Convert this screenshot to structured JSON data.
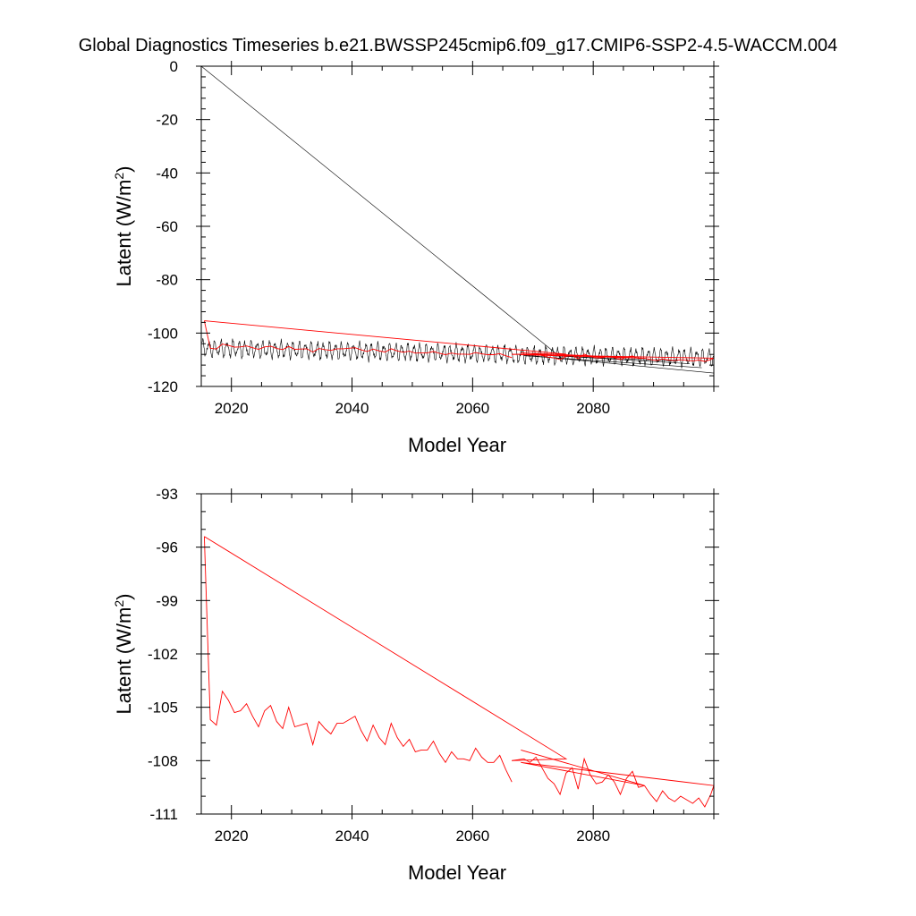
{
  "title": "Global Diagnostics Timeseries b.e21.BWSSP245cmip6.f09_g17.CMIP6-SSP2-4.5-WACCM.004",
  "colors": {
    "monthly": "#000000",
    "annual": "#ff0000",
    "axis": "#000000"
  },
  "chart_data": [
    {
      "type": "line",
      "title": "",
      "xlabel": "Model Year",
      "ylabel": "Latent (W/m2)",
      "ylabel_base": "Latent (W/m",
      "ylabel_sup": "2",
      "ylabel_end": ")",
      "xlim": [
        2015,
        2100
      ],
      "ylim": [
        -120,
        0
      ],
      "xticks": [
        2020,
        2040,
        2060,
        2080
      ],
      "yticks": [
        0,
        -20,
        -40,
        -60,
        -80,
        -100,
        -120
      ],
      "grid": false,
      "series": [
        {
          "style": "monthly",
          "color": "#000000",
          "x": [
            2015.0,
            2075.0
          ],
          "y": [
            0,
            -109.8
          ],
          "note_shape": "monthly trace continues below"
        },
        {
          "style": "monthly-segments",
          "color": "#000000",
          "segments": [
            {
              "x0": 2015.1,
              "x1": 2066.9,
              "mean": -106.8,
              "amp": 2.6,
              "trend": -2.2
            },
            {
              "x0": 2067.0,
              "x1": 2099.9,
              "mean": -108.7,
              "amp": 2.6,
              "trend": -1.0
            }
          ],
          "tails": [
            {
              "x": [
                2067.5,
                2100.0
              ],
              "y": [
                -108.0,
                -115.0
              ]
            },
            {
              "x": [
                2068.5,
                2098.0
              ],
              "y": [
                -108.5,
                -113.0
              ]
            },
            {
              "x": [
                2070.0,
                2096.0
              ],
              "y": [
                -108.0,
                -111.5
              ]
            },
            {
              "x": [
                2073.0,
                2094.0
              ],
              "y": [
                -108.5,
                -110.5
              ]
            }
          ]
        },
        {
          "style": "annual",
          "color": "#ff0000",
          "x": [
            2015.5,
            2016.5,
            2017.5,
            2018.5,
            2019.5,
            2020.5,
            2021.5,
            2022.5,
            2023.5,
            2024.5,
            2025.5,
            2026.5,
            2027.5,
            2028.5,
            2029.5,
            2030.5,
            2031.5,
            2032.5,
            2033.5,
            2034.5,
            2035.5,
            2036.5,
            2037.5,
            2038.5,
            2039.5,
            2040.5,
            2041.5,
            2042.5,
            2043.5,
            2044.5,
            2045.5,
            2046.5,
            2047.5,
            2048.5,
            2049.5,
            2050.5,
            2051.5,
            2052.5,
            2053.5,
            2054.5,
            2055.5,
            2056.5,
            2057.5,
            2058.5,
            2059.5,
            2060.5,
            2061.5,
            2062.5,
            2063.5,
            2064.5,
            2065.5,
            2066.5
          ],
          "y": [
            -95.4,
            -105.7,
            -106.0,
            -104.1,
            -104.6,
            -105.3,
            -105.2,
            -104.8,
            -105.5,
            -106.1,
            -105.2,
            -104.9,
            -105.8,
            -106.2,
            -105.0,
            -106.1,
            -106.0,
            -105.9,
            -107.1,
            -105.8,
            -106.2,
            -106.5,
            -105.9,
            -105.9,
            -105.7,
            -105.5,
            -106.3,
            -106.9,
            -106.0,
            -106.7,
            -107.1,
            -105.9,
            -106.7,
            -107.2,
            -106.8,
            -107.5,
            -107.4,
            -107.4,
            -106.9,
            -107.6,
            -108.1,
            -107.5,
            -107.9,
            -107.9,
            -108.0,
            -107.3,
            -107.8,
            -108.1,
            -108.1,
            -107.7,
            -108.5,
            -109.2
          ]
        },
        {
          "style": "annual",
          "color": "#ff0000",
          "x": [
            2015.5,
            2075.5,
            2066.5
          ],
          "y": [
            -95.4,
            -107.9,
            -108.0
          ]
        },
        {
          "style": "annual",
          "color": "#ff0000",
          "x": [
            2066.5,
            2068.5,
            2069.5,
            2070.5,
            2071.5,
            2072.5,
            2073.5,
            2074.5,
            2075.5,
            2076.5,
            2077.5,
            2078.5,
            2079.5,
            2080.5,
            2081.5,
            2082.5,
            2083.5,
            2084.5,
            2085.5,
            2086.5,
            2087.5,
            2088.5
          ],
          "y": [
            -108.0,
            -107.9,
            -108.1,
            -107.8,
            -108.4,
            -109.0,
            -109.3,
            -109.9,
            -108.7,
            -108.4,
            -109.6,
            -107.9,
            -108.8,
            -109.3,
            -109.2,
            -108.8,
            -109.2,
            -109.9,
            -109.0,
            -108.6,
            -109.5,
            -109.4
          ]
        },
        {
          "style": "annual",
          "color": "#ff0000",
          "x": [
            2068.0,
            2088.5,
            2068.0,
            2100.0,
            2099.5,
            2098.5,
            2097.5,
            2096.5,
            2095.5,
            2094.5,
            2093.5,
            2092.5,
            2091.5,
            2090.5,
            2089.5,
            2088.5
          ],
          "y": [
            -107.4,
            -109.4,
            -108.1,
            -109.4,
            -109.9,
            -110.6,
            -110.1,
            -110.4,
            -110.2,
            -110.0,
            -110.3,
            -110.1,
            -109.7,
            -110.3,
            -109.9,
            -109.4
          ]
        }
      ]
    },
    {
      "type": "line",
      "title": "",
      "xlabel": "Model Year",
      "ylabel": "Latent (W/m2)",
      "ylabel_base": "Latent (W/m",
      "ylabel_sup": "2",
      "ylabel_end": ")",
      "xlim": [
        2015,
        2100
      ],
      "ylim": [
        -111,
        -93
      ],
      "xticks": [
        2020,
        2040,
        2060,
        2080
      ],
      "yticks": [
        -93,
        -96,
        -99,
        -102,
        -105,
        -108,
        -111
      ],
      "grid": false,
      "series": [
        {
          "style": "annual",
          "color": "#ff0000",
          "x": [
            2015.5,
            2016.5,
            2017.5,
            2018.5,
            2019.5,
            2020.5,
            2021.5,
            2022.5,
            2023.5,
            2024.5,
            2025.5,
            2026.5,
            2027.5,
            2028.5,
            2029.5,
            2030.5,
            2031.5,
            2032.5,
            2033.5,
            2034.5,
            2035.5,
            2036.5,
            2037.5,
            2038.5,
            2039.5,
            2040.5,
            2041.5,
            2042.5,
            2043.5,
            2044.5,
            2045.5,
            2046.5,
            2047.5,
            2048.5,
            2049.5,
            2050.5,
            2051.5,
            2052.5,
            2053.5,
            2054.5,
            2055.5,
            2056.5,
            2057.5,
            2058.5,
            2059.5,
            2060.5,
            2061.5,
            2062.5,
            2063.5,
            2064.5,
            2065.5,
            2066.5
          ],
          "y": [
            -95.4,
            -105.7,
            -106.0,
            -104.1,
            -104.6,
            -105.3,
            -105.2,
            -104.8,
            -105.5,
            -106.1,
            -105.2,
            -104.9,
            -105.8,
            -106.2,
            -105.0,
            -106.1,
            -106.0,
            -105.9,
            -107.1,
            -105.8,
            -106.2,
            -106.5,
            -105.9,
            -105.9,
            -105.7,
            -105.5,
            -106.3,
            -106.9,
            -106.0,
            -106.7,
            -107.1,
            -105.9,
            -106.7,
            -107.2,
            -106.8,
            -107.5,
            -107.4,
            -107.4,
            -106.9,
            -107.6,
            -108.1,
            -107.5,
            -107.9,
            -107.9,
            -108.0,
            -107.3,
            -107.8,
            -108.1,
            -108.1,
            -107.7,
            -108.5,
            -109.2
          ]
        },
        {
          "style": "annual",
          "color": "#ff0000",
          "x": [
            2015.5,
            2075.5,
            2066.5
          ],
          "y": [
            -95.4,
            -107.9,
            -108.0
          ]
        },
        {
          "style": "annual",
          "color": "#ff0000",
          "x": [
            2066.5,
            2068.5,
            2069.5,
            2070.5,
            2071.5,
            2072.5,
            2073.5,
            2074.5,
            2075.5,
            2076.5,
            2077.5,
            2078.5,
            2079.5,
            2080.5,
            2081.5,
            2082.5,
            2083.5,
            2084.5,
            2085.5,
            2086.5,
            2087.5,
            2088.5
          ],
          "y": [
            -108.0,
            -107.9,
            -108.1,
            -107.8,
            -108.4,
            -109.0,
            -109.3,
            -109.9,
            -108.7,
            -108.4,
            -109.6,
            -107.9,
            -108.8,
            -109.3,
            -109.2,
            -108.8,
            -109.2,
            -109.9,
            -109.0,
            -108.6,
            -109.5,
            -109.4
          ]
        },
        {
          "style": "annual",
          "color": "#ff0000",
          "x": [
            2068.0,
            2088.5,
            2068.0,
            2100.0,
            2099.5,
            2098.5,
            2097.5,
            2096.5,
            2095.5,
            2094.5,
            2093.5,
            2092.5,
            2091.5,
            2090.5,
            2089.5,
            2088.5
          ],
          "y": [
            -107.4,
            -109.4,
            -108.1,
            -109.4,
            -109.9,
            -110.6,
            -110.1,
            -110.4,
            -110.2,
            -110.0,
            -110.3,
            -110.1,
            -109.7,
            -110.3,
            -109.9,
            -109.4
          ]
        }
      ]
    }
  ]
}
